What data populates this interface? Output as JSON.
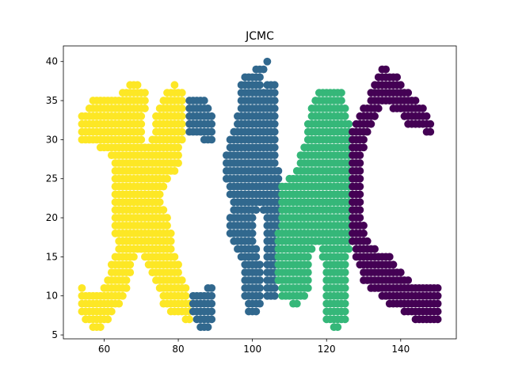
{
  "chart_data": {
    "type": "scatter",
    "title": "JCMC",
    "xlabel": "",
    "ylabel": "",
    "xlim": [
      49,
      155
    ],
    "ylim": [
      4.5,
      42
    ],
    "xticks": [
      60,
      80,
      100,
      120,
      140
    ],
    "yticks": [
      5,
      10,
      15,
      20,
      25,
      30,
      35,
      40
    ],
    "grid": false,
    "legend": "none",
    "colors": {
      "yellow": "#fde725",
      "blue": "#31688e",
      "green": "#35b779",
      "purple": "#440154"
    },
    "clusters": [
      {
        "color": "yellow",
        "rows": [
          [
            37,
            67,
            69
          ],
          [
            37,
            79,
            79
          ],
          [
            36,
            65,
            71
          ],
          [
            36,
            77,
            81
          ],
          [
            35,
            57,
            71
          ],
          [
            35,
            76,
            81
          ],
          [
            34,
            56,
            71
          ],
          [
            34,
            75,
            81
          ],
          [
            33,
            54,
            70
          ],
          [
            33,
            74,
            81
          ],
          [
            32,
            54,
            70
          ],
          [
            32,
            74,
            81
          ],
          [
            31,
            54,
            70
          ],
          [
            31,
            74,
            81
          ],
          [
            30,
            54,
            70
          ],
          [
            30,
            73,
            81
          ],
          [
            29,
            59,
            80
          ],
          [
            28,
            62,
            80
          ],
          [
            27,
            63,
            80
          ],
          [
            26,
            63,
            79
          ],
          [
            25,
            63,
            77
          ],
          [
            24,
            63,
            76
          ],
          [
            23,
            63,
            75
          ],
          [
            22,
            63,
            75
          ],
          [
            21,
            63,
            76
          ],
          [
            20,
            63,
            77
          ],
          [
            19,
            63,
            77
          ],
          [
            18,
            63,
            78
          ],
          [
            17,
            64,
            78
          ],
          [
            16,
            64,
            78
          ],
          [
            15,
            63,
            68
          ],
          [
            15,
            71,
            79
          ],
          [
            14,
            62,
            67
          ],
          [
            14,
            72,
            80
          ],
          [
            13,
            62,
            67
          ],
          [
            13,
            73,
            80
          ],
          [
            12,
            61,
            66
          ],
          [
            12,
            74,
            81
          ],
          [
            11,
            54,
            54
          ],
          [
            11,
            60,
            66
          ],
          [
            11,
            75,
            82
          ],
          [
            10,
            54,
            65
          ],
          [
            10,
            76,
            82
          ],
          [
            9,
            54,
            64
          ],
          [
            9,
            76,
            83
          ],
          [
            8,
            54,
            62
          ],
          [
            8,
            78,
            83
          ],
          [
            7,
            55,
            61
          ],
          [
            7,
            82,
            83
          ],
          [
            6,
            57,
            59
          ]
        ]
      },
      {
        "color": "blue",
        "rows": [
          [
            40,
            104,
            104
          ],
          [
            39,
            101,
            103
          ],
          [
            38,
            98,
            102
          ],
          [
            37,
            97,
            102
          ],
          [
            37,
            104,
            106
          ],
          [
            36,
            97,
            106
          ],
          [
            35,
            83,
            87
          ],
          [
            35,
            97,
            106
          ],
          [
            34,
            83,
            88
          ],
          [
            34,
            97,
            106
          ],
          [
            33,
            83,
            89
          ],
          [
            33,
            96,
            106
          ],
          [
            32,
            83,
            89
          ],
          [
            32,
            96,
            106
          ],
          [
            31,
            83,
            89
          ],
          [
            31,
            95,
            106
          ],
          [
            30,
            87,
            89
          ],
          [
            30,
            94,
            106
          ],
          [
            29,
            94,
            106
          ],
          [
            28,
            93,
            106
          ],
          [
            27,
            93,
            106
          ],
          [
            26,
            93,
            107
          ],
          [
            25,
            93,
            107
          ],
          [
            24,
            94,
            107
          ],
          [
            23,
            94,
            107
          ],
          [
            22,
            95,
            107
          ],
          [
            21,
            95,
            101
          ],
          [
            21,
            103,
            107
          ],
          [
            20,
            94,
            100
          ],
          [
            20,
            104,
            107
          ],
          [
            19,
            94,
            100
          ],
          [
            19,
            104,
            107
          ],
          [
            18,
            94,
            100
          ],
          [
            18,
            104,
            107
          ],
          [
            17,
            95,
            100
          ],
          [
            17,
            104,
            107
          ],
          [
            16,
            96,
            101
          ],
          [
            16,
            104,
            107
          ],
          [
            15,
            97,
            101
          ],
          [
            15,
            104,
            106
          ],
          [
            14,
            98,
            102
          ],
          [
            14,
            104,
            106
          ],
          [
            13,
            98,
            102
          ],
          [
            13,
            104,
            106
          ],
          [
            12,
            98,
            102
          ],
          [
            12,
            104,
            106
          ],
          [
            11,
            88,
            89
          ],
          [
            11,
            98,
            102
          ],
          [
            11,
            104,
            106
          ],
          [
            10,
            84,
            89
          ],
          [
            10,
            98,
            102
          ],
          [
            10,
            104,
            106
          ],
          [
            9,
            84,
            89
          ],
          [
            9,
            99,
            102
          ],
          [
            8,
            84,
            89
          ],
          [
            8,
            99,
            101
          ],
          [
            7,
            85,
            89
          ],
          [
            6,
            86,
            88
          ]
        ]
      },
      {
        "color": "green",
        "rows": [
          [
            36,
            118,
            124
          ],
          [
            35,
            117,
            124
          ],
          [
            34,
            116,
            125
          ],
          [
            33,
            116,
            125
          ],
          [
            32,
            115,
            126
          ],
          [
            31,
            115,
            126
          ],
          [
            30,
            115,
            126
          ],
          [
            29,
            114,
            126
          ],
          [
            28,
            113,
            126
          ],
          [
            27,
            113,
            126
          ],
          [
            26,
            112,
            126
          ],
          [
            25,
            110,
            126
          ],
          [
            24,
            108,
            126
          ],
          [
            23,
            108,
            126
          ],
          [
            22,
            108,
            126
          ],
          [
            21,
            108,
            126
          ],
          [
            20,
            108,
            126
          ],
          [
            19,
            108,
            126
          ],
          [
            18,
            107,
            126
          ],
          [
            17,
            107,
            126
          ],
          [
            16,
            107,
            116
          ],
          [
            16,
            119,
            126
          ],
          [
            15,
            107,
            115
          ],
          [
            15,
            119,
            125
          ],
          [
            14,
            107,
            115
          ],
          [
            14,
            120,
            125
          ],
          [
            13,
            107,
            115
          ],
          [
            13,
            120,
            125
          ],
          [
            12,
            107,
            115
          ],
          [
            12,
            120,
            125
          ],
          [
            11,
            108,
            115
          ],
          [
            11,
            120,
            125
          ],
          [
            10,
            108,
            114
          ],
          [
            10,
            120,
            125
          ],
          [
            9,
            111,
            112
          ],
          [
            9,
            120,
            125
          ],
          [
            8,
            120,
            125
          ],
          [
            7,
            120,
            125
          ],
          [
            6,
            122,
            123
          ]
        ]
      },
      {
        "color": "purple",
        "rows": [
          [
            39,
            135,
            136
          ],
          [
            38,
            134,
            139
          ],
          [
            37,
            133,
            140
          ],
          [
            36,
            132,
            142
          ],
          [
            35,
            132,
            144
          ],
          [
            34,
            130,
            134
          ],
          [
            34,
            138,
            146
          ],
          [
            33,
            129,
            133
          ],
          [
            33,
            141,
            147
          ],
          [
            32,
            128,
            132
          ],
          [
            32,
            142,
            148
          ],
          [
            31,
            127,
            131
          ],
          [
            31,
            147,
            148
          ],
          [
            30,
            127,
            130
          ],
          [
            29,
            127,
            130
          ],
          [
            28,
            127,
            129
          ],
          [
            27,
            127,
            129
          ],
          [
            26,
            127,
            129
          ],
          [
            25,
            127,
            129
          ],
          [
            24,
            127,
            129
          ],
          [
            23,
            127,
            129
          ],
          [
            22,
            127,
            129
          ],
          [
            21,
            127,
            129
          ],
          [
            20,
            127,
            129
          ],
          [
            19,
            127,
            130
          ],
          [
            18,
            127,
            130
          ],
          [
            17,
            127,
            131
          ],
          [
            16,
            128,
            133
          ],
          [
            15,
            128,
            137
          ],
          [
            14,
            129,
            138
          ],
          [
            13,
            130,
            140
          ],
          [
            12,
            130,
            142
          ],
          [
            11,
            132,
            150
          ],
          [
            10,
            135,
            150
          ],
          [
            9,
            137,
            150
          ],
          [
            8,
            141,
            150
          ],
          [
            7,
            144,
            150
          ]
        ]
      }
    ]
  }
}
